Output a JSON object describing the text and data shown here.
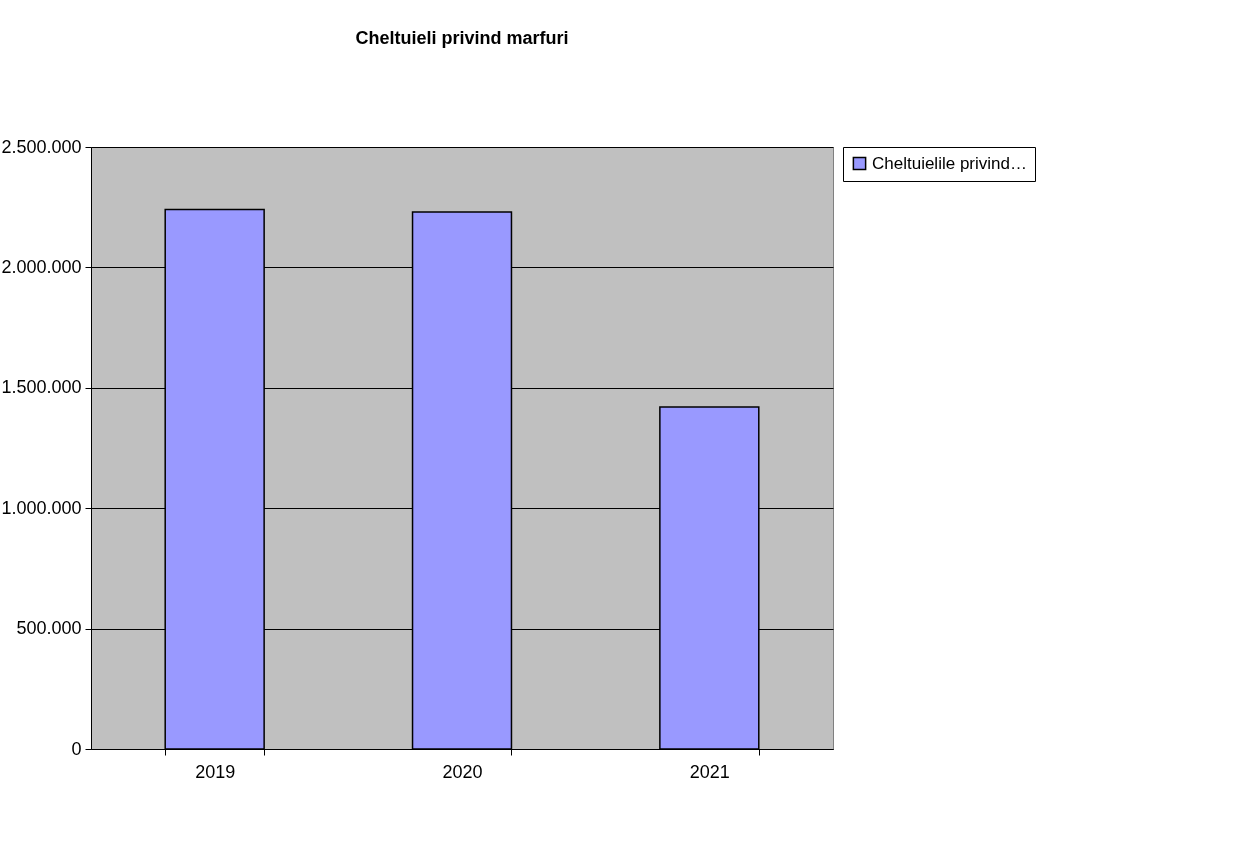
{
  "chart_data": {
    "type": "bar",
    "title": "Cheltuieli  privind marfuri",
    "categories": [
      "2019",
      "2020",
      "2021"
    ],
    "series": [
      {
        "name": "Cheltuielile privind…",
        "color": "#9999ff",
        "values": [
          2240000,
          2230000,
          1420000
        ]
      }
    ],
    "ylim": [
      0,
      2500000
    ],
    "yticks": [
      {
        "value": 0,
        "label": "0"
      },
      {
        "value": 500000,
        "label": "500.000"
      },
      {
        "value": 1000000,
        "label": "1.000.000"
      },
      {
        "value": 1500000,
        "label": "1.500.000"
      },
      {
        "value": 2000000,
        "label": "2.000.000"
      },
      {
        "value": 2500000,
        "label": "2.500.000"
      }
    ],
    "grid": "y",
    "legend": "right"
  }
}
